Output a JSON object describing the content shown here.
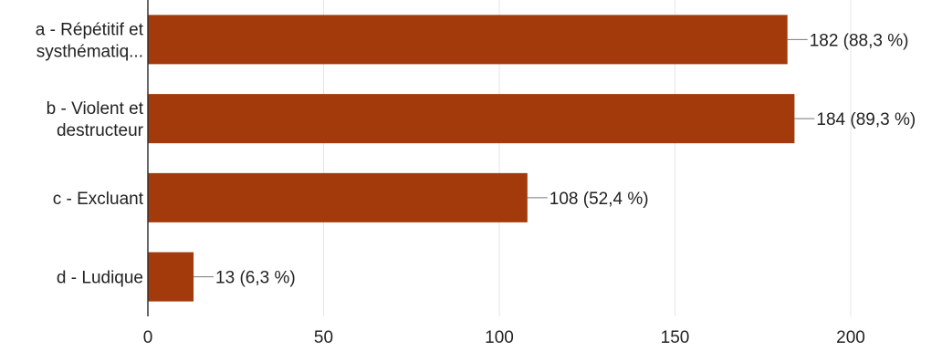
{
  "chart_data": {
    "type": "bar",
    "orientation": "horizontal",
    "categories": [
      [
        "a - Répétitif et",
        "systhématiq..."
      ],
      [
        "b - Violent et",
        "destructeur"
      ],
      [
        "c - Excluant"
      ],
      [
        "d - Ludique"
      ]
    ],
    "values": [
      182,
      184,
      108,
      13
    ],
    "data_labels": [
      "182 (88,3 %)",
      "184 (89,3 %)",
      "108 (52,4 %)",
      "13 (6,3 %)"
    ],
    "xlim": [
      0,
      200
    ],
    "xticks": [
      0,
      50,
      100,
      150,
      200
    ],
    "title": "",
    "xlabel": "",
    "ylabel": "",
    "grid": true,
    "bar_color": "#a33a0b",
    "grid_color": "#e6e6e6",
    "axis_color": "#333333"
  }
}
